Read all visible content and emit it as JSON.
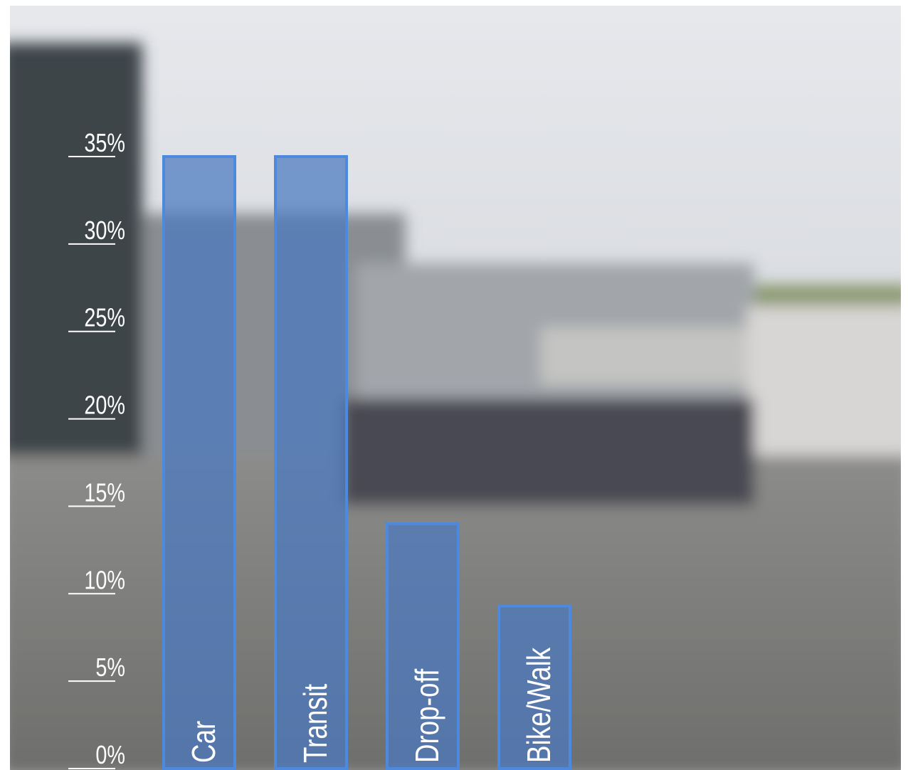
{
  "chart_data": {
    "type": "bar",
    "categories": [
      "Car",
      "Transit",
      "Drop-off",
      "Bike/Walk"
    ],
    "values": [
      35,
      35,
      14,
      9.3
    ],
    "color": "#4a78c0",
    "ylim": [
      0,
      35
    ],
    "yticks": [
      {
        "value": 0,
        "label": "0%"
      },
      {
        "value": 5,
        "label": "5%"
      },
      {
        "value": 10,
        "label": "10%"
      },
      {
        "value": 15,
        "label": "15%"
      },
      {
        "value": 20,
        "label": "20%"
      },
      {
        "value": 25,
        "label": "25%"
      },
      {
        "value": 30,
        "label": "30%"
      },
      {
        "value": 35,
        "label": "35%"
      }
    ]
  }
}
